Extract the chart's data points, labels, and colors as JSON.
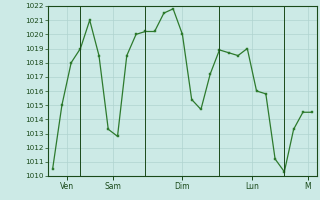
{
  "y_values": [
    1010.5,
    1015.0,
    1018.0,
    1019.0,
    1021.0,
    1018.5,
    1013.3,
    1012.8,
    1018.5,
    1020.0,
    1020.2,
    1020.2,
    1021.5,
    1021.8,
    1020.0,
    1015.4,
    1014.7,
    1017.2,
    1018.9,
    1018.7,
    1018.5,
    1019.0,
    1016.0,
    1015.8,
    1011.2,
    1010.3,
    1013.3,
    1014.5,
    1014.5
  ],
  "ylim": [
    1010,
    1022
  ],
  "yticks": [
    1010,
    1011,
    1012,
    1013,
    1014,
    1015,
    1016,
    1017,
    1018,
    1019,
    1020,
    1021,
    1022
  ],
  "vline_positions": [
    3,
    10,
    18,
    25
  ],
  "xtick_positions": [
    1.5,
    6.5,
    14.0,
    21.5,
    27.5
  ],
  "xtick_labels": [
    "Ven",
    "Sam",
    "Dim",
    "Lun",
    "M"
  ],
  "line_color": "#2d7a2d",
  "marker_color": "#2d7a2d",
  "bg_color": "#cceae6",
  "grid_color": "#b0d4d0",
  "axis_color": "#1a4a1a",
  "figsize": [
    3.2,
    2.0
  ],
  "dpi": 100
}
